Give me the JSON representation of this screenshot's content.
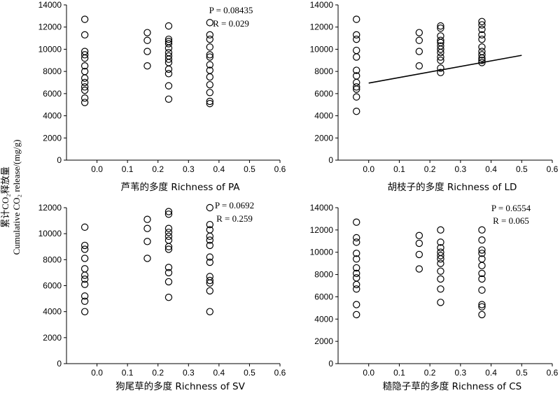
{
  "y_axis_label": {
    "line1_cn": "累计CO₂释放量",
    "line2": "Cumulative CO₂ release/(mg/g)"
  },
  "chart_data": [
    {
      "type": "scatter",
      "xlabel": "芦苇的多度 Richness of PA",
      "xlim": [
        -0.1,
        0.6
      ],
      "xticks": [
        "0.0",
        "0.1",
        "0.2",
        "0.3",
        "0.4",
        "0.5",
        "0.6"
      ],
      "ylim": [
        0,
        14000
      ],
      "yticks": [
        "0",
        "2000",
        "4000",
        "6000",
        "8000",
        "10000",
        "12000",
        "14000"
      ],
      "annotation": {
        "P": "P = 0.08435",
        "R": "R = 0.029"
      },
      "points": [
        [
          -0.04,
          12700
        ],
        [
          -0.04,
          11300
        ],
        [
          -0.04,
          9800
        ],
        [
          -0.04,
          9500
        ],
        [
          -0.04,
          9200
        ],
        [
          -0.04,
          8500
        ],
        [
          -0.04,
          8000
        ],
        [
          -0.04,
          7400
        ],
        [
          -0.04,
          7000
        ],
        [
          -0.04,
          6600
        ],
        [
          -0.04,
          6300
        ],
        [
          -0.04,
          5600
        ],
        [
          -0.04,
          5200
        ],
        [
          0.165,
          11500
        ],
        [
          0.165,
          10800
        ],
        [
          0.165,
          9800
        ],
        [
          0.165,
          8500
        ],
        [
          0.235,
          12100
        ],
        [
          0.235,
          10900
        ],
        [
          0.235,
          10700
        ],
        [
          0.235,
          10500
        ],
        [
          0.235,
          10100
        ],
        [
          0.235,
          9700
        ],
        [
          0.235,
          9400
        ],
        [
          0.235,
          9100
        ],
        [
          0.235,
          8800
        ],
        [
          0.235,
          8200
        ],
        [
          0.235,
          7800
        ],
        [
          0.235,
          6700
        ],
        [
          0.235,
          5500
        ],
        [
          0.37,
          12400
        ],
        [
          0.37,
          11300
        ],
        [
          0.37,
          10900
        ],
        [
          0.37,
          10200
        ],
        [
          0.37,
          9500
        ],
        [
          0.37,
          9300
        ],
        [
          0.37,
          8600
        ],
        [
          0.37,
          8100
        ],
        [
          0.37,
          7500
        ],
        [
          0.37,
          6800
        ],
        [
          0.37,
          6100
        ],
        [
          0.37,
          5300
        ],
        [
          0.37,
          5100
        ]
      ]
    },
    {
      "type": "scatter",
      "xlabel": "胡枝子的多度 Richness of LD",
      "xlim": [
        -0.1,
        0.6
      ],
      "xticks": [
        "0.0",
        "0.1",
        "0.2",
        "0.3",
        "0.4",
        "0.5",
        "0.6"
      ],
      "ylim": [
        0,
        14000
      ],
      "yticks": [
        "0",
        "2000",
        "4000",
        "6000",
        "8000",
        "10000",
        "12000",
        "14000"
      ],
      "trendline": {
        "x": [
          0.0,
          0.5
        ],
        "y": [
          6950,
          9450
        ]
      },
      "points": [
        [
          -0.04,
          12700
        ],
        [
          -0.04,
          11300
        ],
        [
          -0.04,
          10900
        ],
        [
          -0.04,
          9900
        ],
        [
          -0.04,
          9300
        ],
        [
          -0.04,
          8100
        ],
        [
          -0.04,
          7600
        ],
        [
          -0.04,
          7000
        ],
        [
          -0.04,
          6600
        ],
        [
          -0.04,
          6400
        ],
        [
          -0.04,
          5700
        ],
        [
          -0.04,
          4400
        ],
        [
          0.165,
          11500
        ],
        [
          0.165,
          10800
        ],
        [
          0.165,
          9800
        ],
        [
          0.165,
          8500
        ],
        [
          0.235,
          12100
        ],
        [
          0.235,
          11900
        ],
        [
          0.235,
          11200
        ],
        [
          0.235,
          10800
        ],
        [
          0.235,
          10600
        ],
        [
          0.235,
          10300
        ],
        [
          0.235,
          10000
        ],
        [
          0.235,
          9700
        ],
        [
          0.235,
          9300
        ],
        [
          0.235,
          9000
        ],
        [
          0.235,
          8300
        ],
        [
          0.235,
          7900
        ],
        [
          0.37,
          12500
        ],
        [
          0.37,
          12200
        ],
        [
          0.37,
          11800
        ],
        [
          0.37,
          11300
        ],
        [
          0.37,
          10900
        ],
        [
          0.37,
          10200
        ],
        [
          0.37,
          9800
        ],
        [
          0.37,
          9500
        ],
        [
          0.37,
          9200
        ],
        [
          0.37,
          9000
        ],
        [
          0.37,
          8800
        ]
      ]
    },
    {
      "type": "scatter",
      "xlabel": "狗尾草的多度 Richness of SV",
      "xlim": [
        -0.1,
        0.6
      ],
      "xticks": [
        "0.0",
        "0.1",
        "0.2",
        "0.3",
        "0.4",
        "0.5",
        "0.6"
      ],
      "ylim": [
        0,
        12000
      ],
      "yticks": [
        "0",
        "2000",
        "4000",
        "6000",
        "8000",
        "10000",
        "12000"
      ],
      "annotation": {
        "P": "P = 0.0692",
        "R": "R = 0.259"
      },
      "points": [
        [
          -0.04,
          10500
        ],
        [
          -0.04,
          9100
        ],
        [
          -0.04,
          8800
        ],
        [
          -0.04,
          8100
        ],
        [
          -0.04,
          7300
        ],
        [
          -0.04,
          6800
        ],
        [
          -0.04,
          6500
        ],
        [
          -0.04,
          6100
        ],
        [
          -0.04,
          5200
        ],
        [
          -0.04,
          4800
        ],
        [
          -0.04,
          4000
        ],
        [
          0.165,
          11100
        ],
        [
          0.165,
          10400
        ],
        [
          0.165,
          9400
        ],
        [
          0.165,
          8100
        ],
        [
          0.235,
          11700
        ],
        [
          0.235,
          11500
        ],
        [
          0.235,
          10400
        ],
        [
          0.235,
          10100
        ],
        [
          0.235,
          9800
        ],
        [
          0.235,
          9500
        ],
        [
          0.235,
          9000
        ],
        [
          0.235,
          8800
        ],
        [
          0.235,
          7400
        ],
        [
          0.235,
          7000
        ],
        [
          0.235,
          6300
        ],
        [
          0.235,
          5100
        ],
        [
          0.37,
          12000
        ],
        [
          0.37,
          10700
        ],
        [
          0.37,
          10300
        ],
        [
          0.37,
          9800
        ],
        [
          0.37,
          9500
        ],
        [
          0.37,
          9100
        ],
        [
          0.37,
          8200
        ],
        [
          0.37,
          7800
        ],
        [
          0.37,
          6700
        ],
        [
          0.37,
          6400
        ],
        [
          0.37,
          6200
        ],
        [
          0.37,
          5600
        ],
        [
          0.37,
          4000
        ]
      ]
    },
    {
      "type": "scatter",
      "xlabel": "糙隐子草的多度 Richness of CS",
      "xlim": [
        -0.1,
        0.6
      ],
      "xticks": [
        "0.0",
        "0.1",
        "0.2",
        "0.3",
        "0.4",
        "0.5",
        "0.6"
      ],
      "ylim": [
        0,
        14000
      ],
      "yticks": [
        "0",
        "2000",
        "4000",
        "6000",
        "8000",
        "10000",
        "12000",
        "14000"
      ],
      "annotation": {
        "P": "P = 0.6554",
        "R": "R = 0.065"
      },
      "points": [
        [
          -0.04,
          12700
        ],
        [
          -0.04,
          11300
        ],
        [
          -0.04,
          10900
        ],
        [
          -0.04,
          9900
        ],
        [
          -0.04,
          9400
        ],
        [
          -0.04,
          8600
        ],
        [
          -0.04,
          8100
        ],
        [
          -0.04,
          7700
        ],
        [
          -0.04,
          7100
        ],
        [
          -0.04,
          6700
        ],
        [
          -0.04,
          5300
        ],
        [
          -0.04,
          4400
        ],
        [
          0.165,
          11500
        ],
        [
          0.165,
          10800
        ],
        [
          0.165,
          9800
        ],
        [
          0.165,
          8500
        ],
        [
          0.235,
          12000
        ],
        [
          0.235,
          10900
        ],
        [
          0.235,
          10400
        ],
        [
          0.235,
          10000
        ],
        [
          0.235,
          9700
        ],
        [
          0.235,
          9400
        ],
        [
          0.235,
          9000
        ],
        [
          0.235,
          8300
        ],
        [
          0.235,
          7600
        ],
        [
          0.235,
          6700
        ],
        [
          0.235,
          5500
        ],
        [
          0.37,
          12000
        ],
        [
          0.37,
          11100
        ],
        [
          0.37,
          10200
        ],
        [
          0.37,
          9900
        ],
        [
          0.37,
          9400
        ],
        [
          0.37,
          8800
        ],
        [
          0.37,
          8100
        ],
        [
          0.37,
          7600
        ],
        [
          0.37,
          6600
        ],
        [
          0.37,
          5300
        ],
        [
          0.37,
          5100
        ],
        [
          0.37,
          4400
        ]
      ]
    }
  ]
}
